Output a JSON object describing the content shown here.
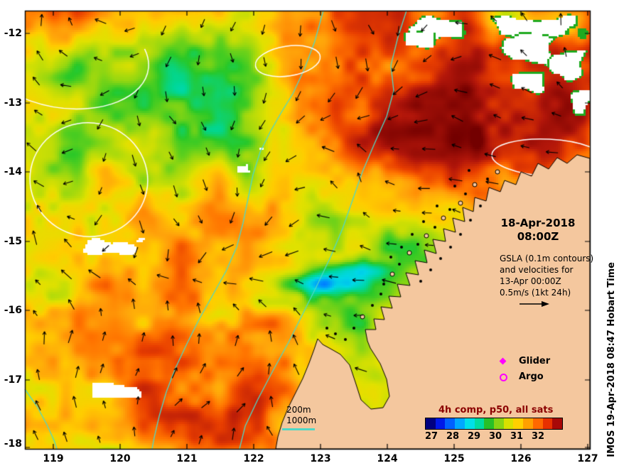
{
  "figure": {
    "title_date": "18-Apr-2018",
    "title_time": "08:00Z",
    "gsla_lines": [
      "GSLA (0.1m contours)",
      "and velocities for",
      "13-Apr 00:00Z",
      "0.5m/s (1kt 24h)"
    ],
    "legend": {
      "glider": "Glider",
      "argo": "Argo"
    },
    "depth_legend": {
      "l200": "200m",
      "l1000": "1000m"
    },
    "comp_title": "4h comp, p50, all sats",
    "credit": "IMOS 19-Apr-2018 08:47 Hobart Time"
  },
  "axes": {
    "x_ticks": [
      "119",
      "120",
      "121",
      "122",
      "123",
      "124",
      "125",
      "126",
      "127"
    ],
    "y_ticks": [
      "-12",
      "-13",
      "-14",
      "-15",
      "-16",
      "-17",
      "-18"
    ]
  },
  "colorbar": {
    "labels": [
      "27",
      "28",
      "29",
      "30",
      "31",
      "32"
    ],
    "colors": [
      "#000080",
      "#0018e8",
      "#0060ff",
      "#00a8ff",
      "#00e0e8",
      "#00dca0",
      "#28c028",
      "#88d414",
      "#d8e000",
      "#ffd000",
      "#ffa000",
      "#ff6800",
      "#e83000",
      "#a80808"
    ]
  },
  "colors": {
    "land": "#f4c79e",
    "bathy_cyan": "#4fd8c6",
    "contour_white": "#ffffff",
    "marker_magenta": "#ff00ff",
    "comp_title_color": "#8b0000",
    "arrow_black": "#000000"
  }
}
